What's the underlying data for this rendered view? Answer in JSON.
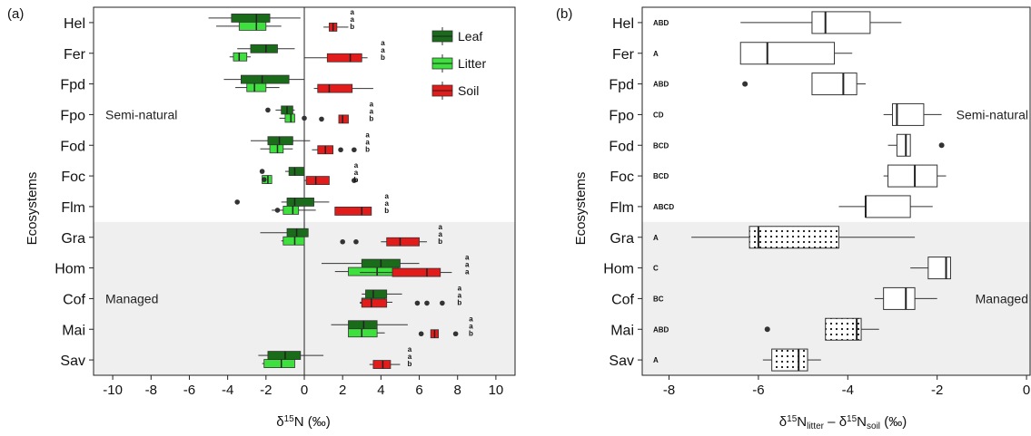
{
  "chart_data": [
    {
      "type": "boxplot",
      "panel_label": "(a)",
      "xlabel": "δ¹⁵N (‰)",
      "ylabel": "Ecosystems",
      "xlim": [
        -11,
        11
      ],
      "xticks": [
        -10,
        -8,
        -6,
        -4,
        -2,
        0,
        2,
        4,
        6,
        8,
        10
      ],
      "categories": [
        "Hel",
        "Fer",
        "Fpd",
        "Fpo",
        "Fod",
        "Foc",
        "Flm",
        "Gra",
        "Hom",
        "Cof",
        "Mai",
        "Sav"
      ],
      "zones": [
        {
          "label": "Semi-natural",
          "from": "Hel",
          "to": "Flm",
          "shaded": false
        },
        {
          "label": "Managed",
          "from": "Gra",
          "to": "Sav",
          "shaded": true
        }
      ],
      "legend": [
        "Leaf",
        "Litter",
        "Soil"
      ],
      "series": [
        {
          "name": "Leaf",
          "color": "#1a6b1a",
          "boxes": [
            {
              "cat": "Hel",
              "wlo": -5.0,
              "q1": -3.8,
              "med": -2.5,
              "q3": -1.8,
              "whi": -0.2,
              "out": []
            },
            {
              "cat": "Fer",
              "wlo": -3.5,
              "q1": -2.8,
              "med": -2.0,
              "q3": -1.4,
              "whi": -0.5,
              "out": []
            },
            {
              "cat": "Fpd",
              "wlo": -4.2,
              "q1": -3.3,
              "med": -2.2,
              "q3": -0.8,
              "whi": 0.0,
              "out": []
            },
            {
              "cat": "Fpo",
              "wlo": -1.5,
              "q1": -1.2,
              "med": -0.9,
              "q3": -0.6,
              "whi": -0.5,
              "out": [
                -1.9
              ]
            },
            {
              "cat": "Fod",
              "wlo": -2.8,
              "q1": -1.9,
              "med": -1.3,
              "q3": -0.6,
              "whi": 0.3,
              "out": []
            },
            {
              "cat": "Foc",
              "wlo": -1.0,
              "q1": -0.8,
              "med": -0.5,
              "q3": 0.0,
              "whi": 0.0,
              "out": [
                -2.2
              ]
            },
            {
              "cat": "Flm",
              "wlo": -1.2,
              "q1": -0.9,
              "med": -0.5,
              "q3": 0.5,
              "whi": 1.3,
              "out": [
                -3.5
              ]
            },
            {
              "cat": "Gra",
              "wlo": -2.3,
              "q1": -0.9,
              "med": -0.4,
              "q3": 0.2,
              "whi": 0.2,
              "out": []
            },
            {
              "cat": "Hom",
              "wlo": 0.9,
              "q1": 3.0,
              "med": 4.0,
              "q3": 5.0,
              "whi": 6.0,
              "out": []
            },
            {
              "cat": "Cof",
              "wlo": 3.0,
              "q1": 3.2,
              "med": 3.6,
              "q3": 4.3,
              "whi": 5.1,
              "out": []
            },
            {
              "cat": "Mai",
              "wlo": 1.4,
              "q1": 2.3,
              "med": 3.1,
              "q3": 3.8,
              "whi": 5.4,
              "out": []
            },
            {
              "cat": "Sav",
              "wlo": -2.4,
              "q1": -1.9,
              "med": -1.0,
              "q3": -0.2,
              "whi": 1.0,
              "out": []
            }
          ]
        },
        {
          "name": "Litter",
          "color": "#3de03d",
          "boxes": [
            {
              "cat": "Hel",
              "wlo": -4.6,
              "q1": -3.4,
              "med": -2.5,
              "q3": -2.0,
              "whi": -1.2,
              "out": []
            },
            {
              "cat": "Fer",
              "wlo": -3.9,
              "q1": -3.7,
              "med": -3.4,
              "q3": -3.0,
              "whi": -2.8,
              "out": []
            },
            {
              "cat": "Fpd",
              "wlo": -3.6,
              "q1": -3.0,
              "med": -2.6,
              "q3": -2.0,
              "whi": -1.3,
              "out": []
            },
            {
              "cat": "Fpo",
              "wlo": -1.3,
              "q1": -1.0,
              "med": -0.7,
              "q3": -0.5,
              "whi": -0.5,
              "out": [
                0.0
              ]
            },
            {
              "cat": "Fod",
              "wlo": -2.3,
              "q1": -1.8,
              "med": -1.4,
              "q3": -1.1,
              "whi": -0.6,
              "out": []
            },
            {
              "cat": "Foc",
              "wlo": -2.2,
              "q1": -2.2,
              "med": -1.9,
              "q3": -1.7,
              "whi": -1.7,
              "out": [
                -2.1
              ]
            },
            {
              "cat": "Flm",
              "wlo": -1.7,
              "q1": -1.1,
              "med": -0.6,
              "q3": -0.3,
              "whi": 0.6,
              "out": [
                -1.4
              ]
            },
            {
              "cat": "Gra",
              "wlo": -1.2,
              "q1": -1.1,
              "med": -0.5,
              "q3": 0.0,
              "whi": 0.0,
              "out": []
            },
            {
              "cat": "Hom",
              "wlo": 1.6,
              "q1": 2.3,
              "med": 3.8,
              "q3": 4.9,
              "whi": 5.9,
              "out": []
            },
            {
              "cat": "Cof",
              "wlo": 2.9,
              "q1": 3.0,
              "med": 3.5,
              "q3": 4.2,
              "whi": 4.6,
              "out": []
            },
            {
              "cat": "Mai",
              "wlo": 2.4,
              "q1": 2.3,
              "med": 3.0,
              "q3": 3.8,
              "whi": 4.2,
              "out": []
            },
            {
              "cat": "Sav",
              "wlo": -2.2,
              "q1": -2.1,
              "med": -1.2,
              "q3": -0.5,
              "whi": -0.5,
              "out": []
            }
          ]
        },
        {
          "name": "Soil",
          "color": "#e21b1b",
          "boxes": [
            {
              "cat": "Hel",
              "wlo": 1.0,
              "q1": 1.3,
              "med": 1.5,
              "q3": 1.7,
              "whi": 2.3,
              "out": []
            },
            {
              "cat": "Fer",
              "wlo": 0.0,
              "q1": 1.2,
              "med": 2.4,
              "q3": 3.0,
              "whi": 3.3,
              "out": []
            },
            {
              "cat": "Fpd",
              "wlo": 0.5,
              "q1": 0.7,
              "med": 1.3,
              "q3": 2.5,
              "whi": 3.6,
              "out": []
            },
            {
              "cat": "Fpo",
              "wlo": 1.8,
              "q1": 1.8,
              "med": 2.0,
              "q3": 2.3,
              "whi": 2.3,
              "out": [
                0.9
              ]
            },
            {
              "cat": "Fod",
              "wlo": 0.4,
              "q1": 0.7,
              "med": 1.1,
              "q3": 1.5,
              "whi": 1.5,
              "out": [
                2.6,
                1.9
              ]
            },
            {
              "cat": "Foc",
              "wlo": 0.0,
              "q1": 0.1,
              "med": 0.6,
              "q3": 1.3,
              "whi": 1.3,
              "out": [
                2.6
              ]
            },
            {
              "cat": "Flm",
              "wlo": 1.6,
              "q1": 1.6,
              "med": 3.0,
              "q3": 3.5,
              "whi": 3.5,
              "out": []
            },
            {
              "cat": "Gra",
              "wlo": 4.0,
              "q1": 4.3,
              "med": 5.0,
              "q3": 6.0,
              "whi": 6.4,
              "out": [
                2.7,
                2.0
              ]
            },
            {
              "cat": "Hom",
              "wlo": 2.9,
              "q1": 4.6,
              "med": 6.4,
              "q3": 7.1,
              "whi": 7.7,
              "out": []
            },
            {
              "cat": "Cof",
              "wlo": 2.9,
              "q1": 3.0,
              "med": 3.5,
              "q3": 4.3,
              "whi": 4.3,
              "out": [
                5.9,
                6.4,
                7.2
              ]
            },
            {
              "cat": "Mai",
              "wlo": 6.6,
              "q1": 6.6,
              "med": 6.8,
              "q3": 7.0,
              "whi": 7.0,
              "out": [
                6.1,
                7.9
              ]
            },
            {
              "cat": "Sav",
              "wlo": 3.4,
              "q1": 3.6,
              "med": 4.1,
              "q3": 4.5,
              "whi": 5.0,
              "out": []
            }
          ]
        }
      ],
      "letters": [
        {
          "cat": "Hel",
          "x": 2.5,
          "values": [
            "a",
            "a",
            "b"
          ]
        },
        {
          "cat": "Fer",
          "x": 4.1,
          "values": [
            "a",
            "a",
            "b"
          ]
        },
        {
          "cat": "Fpd",
          "x": 0,
          "values": []
        },
        {
          "cat": "Fpo",
          "x": 3.5,
          "values": [
            "a",
            "a",
            "b"
          ]
        },
        {
          "cat": "Fod",
          "x": 3.3,
          "values": [
            "a",
            "a",
            "b"
          ]
        },
        {
          "cat": "Foc",
          "x": 2.7,
          "values": [
            "a",
            "a",
            "b"
          ]
        },
        {
          "cat": "Flm",
          "x": 4.3,
          "values": [
            "a",
            "a",
            "b"
          ]
        },
        {
          "cat": "Gra",
          "x": 7.1,
          "values": [
            "a",
            "a",
            "b"
          ]
        },
        {
          "cat": "Hom",
          "x": 8.5,
          "values": [
            "a",
            "a",
            "a"
          ]
        },
        {
          "cat": "Cof",
          "x": 8.1,
          "values": [
            "a",
            "a",
            "b"
          ]
        },
        {
          "cat": "Mai",
          "x": 8.7,
          "values": [
            "a",
            "a",
            "b"
          ]
        },
        {
          "cat": "Sav",
          "x": 5.5,
          "values": [
            "a",
            "a",
            "b"
          ]
        }
      ]
    },
    {
      "type": "boxplot",
      "panel_label": "(b)",
      "xlabel": "δ¹⁵Nlitter − δ¹⁵Nsoil (‰)",
      "ylabel": "Ecosystems",
      "xlim": [
        -8.6,
        0.1
      ],
      "xticks": [
        -8,
        -6,
        -4,
        -2,
        0
      ],
      "categories": [
        "Hel",
        "Fer",
        "Fpd",
        "Fpo",
        "Fod",
        "Foc",
        "Flm",
        "Gra",
        "Hom",
        "Cof",
        "Mai",
        "Sav"
      ],
      "zones": [
        {
          "label": "Semi-natural",
          "from": "Hel",
          "to": "Flm",
          "shaded": false
        },
        {
          "label": "Managed",
          "from": "Gra",
          "to": "Sav",
          "shaded": true
        }
      ],
      "boxes": [
        {
          "cat": "Hel",
          "letter": "ABD",
          "wlo": -6.4,
          "q1": -4.8,
          "med": -4.5,
          "q3": -3.5,
          "whi": -2.8,
          "out": [],
          "dotted": false
        },
        {
          "cat": "Fer",
          "letter": "A",
          "wlo": -6.4,
          "q1": -6.4,
          "med": -5.8,
          "q3": -4.3,
          "whi": -3.9,
          "out": [],
          "dotted": false
        },
        {
          "cat": "Fpd",
          "letter": "ABD",
          "wlo": -4.8,
          "q1": -4.8,
          "med": -4.1,
          "q3": -3.8,
          "whi": -3.6,
          "out": [
            -6.3
          ],
          "dotted": false
        },
        {
          "cat": "Fpo",
          "letter": "CD",
          "wlo": -3.2,
          "q1": -3.0,
          "med": -2.9,
          "q3": -2.3,
          "whi": -1.9,
          "out": [],
          "dotted": false
        },
        {
          "cat": "Fod",
          "letter": "BCD",
          "wlo": -3.1,
          "q1": -2.9,
          "med": -2.7,
          "q3": -2.6,
          "whi": -2.6,
          "out": [
            -1.9
          ],
          "dotted": false
        },
        {
          "cat": "Foc",
          "letter": "BCD",
          "wlo": -3.2,
          "q1": -3.1,
          "med": -2.5,
          "q3": -2.0,
          "whi": -1.8,
          "out": [],
          "dotted": false
        },
        {
          "cat": "Flm",
          "letter": "ABCD",
          "wlo": -4.2,
          "q1": -3.6,
          "med": -3.6,
          "q3": -2.6,
          "whi": -2.1,
          "out": [],
          "dotted": false
        },
        {
          "cat": "Gra",
          "letter": "A",
          "wlo": -7.5,
          "q1": -6.2,
          "med": -6.0,
          "q3": -4.2,
          "whi": -2.5,
          "out": [],
          "dotted": true
        },
        {
          "cat": "Hom",
          "letter": "C",
          "wlo": -2.6,
          "q1": -2.2,
          "med": -1.8,
          "q3": -1.7,
          "whi": -1.7,
          "out": [],
          "dotted": false
        },
        {
          "cat": "Cof",
          "letter": "BC",
          "wlo": -3.4,
          "q1": -3.2,
          "med": -2.7,
          "q3": -2.5,
          "whi": -2.0,
          "out": [],
          "dotted": false
        },
        {
          "cat": "Mai",
          "letter": "ABD",
          "wlo": -4.5,
          "q1": -4.5,
          "med": -3.8,
          "q3": -3.7,
          "whi": -3.3,
          "out": [
            -5.8
          ],
          "dotted": true
        },
        {
          "cat": "Sav",
          "letter": "A",
          "wlo": -5.9,
          "q1": -5.7,
          "med": -5.1,
          "q3": -4.9,
          "whi": -4.6,
          "out": [],
          "dotted": true
        }
      ]
    }
  ]
}
